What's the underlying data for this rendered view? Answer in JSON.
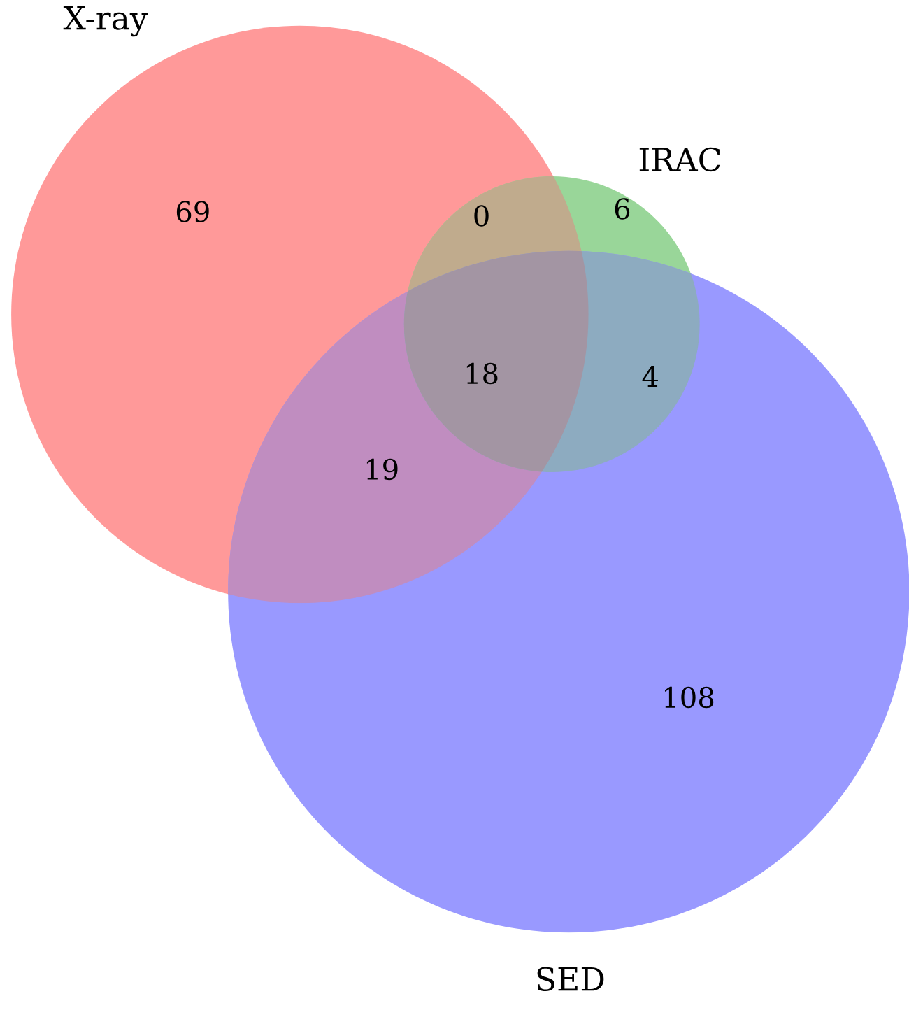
{
  "chart_data": {
    "type": "other",
    "categories": [
      null,
      null,
      null,
      null,
      null,
      null,
      null
    ],
    "values": [
      69,
      0,
      6,
      18,
      4,
      19,
      108
    ],
    "data_labels": true,
    "annotations": [
      "X-ray",
      "IRAC",
      "SED"
    ]
  }
}
